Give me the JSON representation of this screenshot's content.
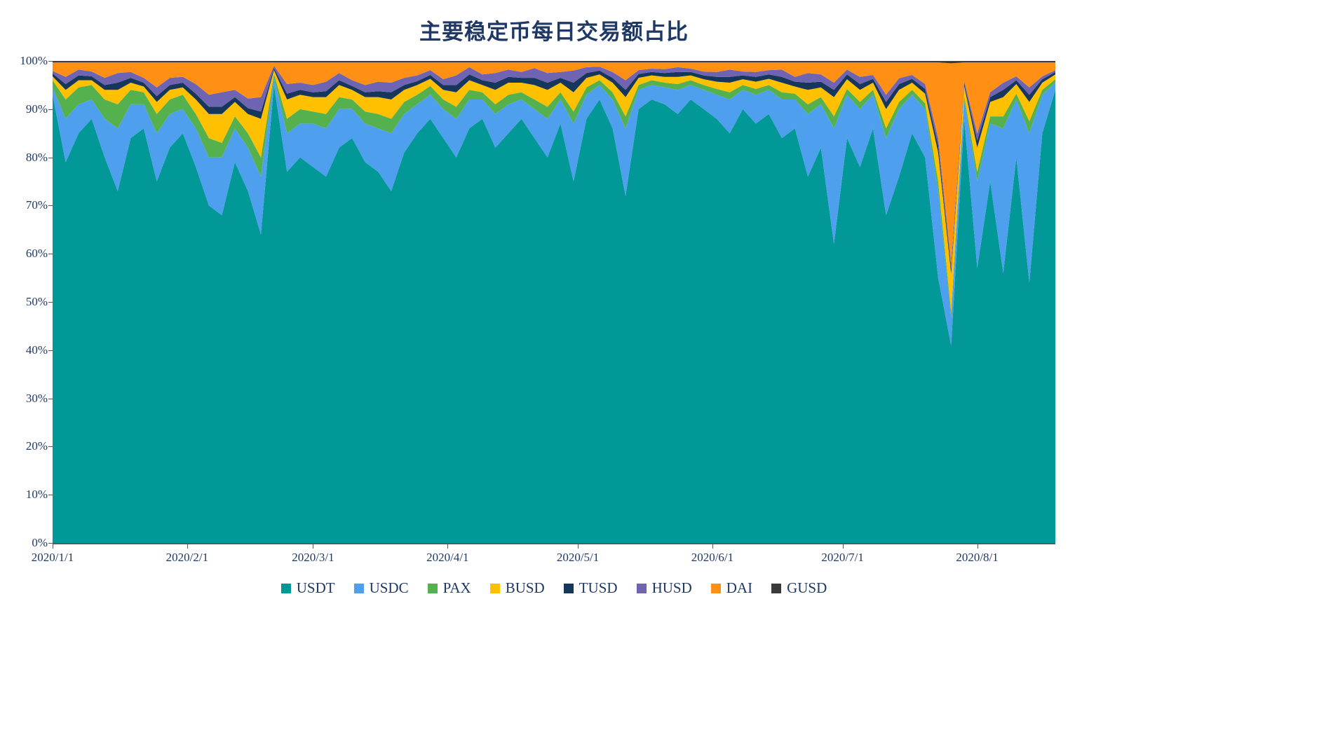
{
  "title": "主要稳定币每日交易额占比",
  "colors": {
    "title_text": "#1F3864",
    "axis_text": "#1F3864",
    "axis_line": "#595959",
    "gridline": "#D9D9D9",
    "background": "#FFFFFF"
  },
  "chart_data": {
    "type": "area",
    "stacking": "100%",
    "title": "主要稳定币每日交易额占比",
    "xlabel": "",
    "ylabel": "",
    "ylim": [
      0,
      100
    ],
    "grid": false,
    "legend_position": "bottom",
    "y_tick_labels": [
      "0%",
      "10%",
      "20%",
      "30%",
      "40%",
      "50%",
      "60%",
      "70%",
      "80%",
      "90%",
      "100%"
    ],
    "x_tick_labels": [
      "2020/1/1",
      "2020/2/1",
      "2020/3/1",
      "2020/4/1",
      "2020/5/1",
      "2020/6/1",
      "2020/7/1",
      "2020/8/1"
    ],
    "x": [
      "2020/1/1",
      "2020/1/4",
      "2020/1/7",
      "2020/1/10",
      "2020/1/13",
      "2020/1/16",
      "2020/1/19",
      "2020/1/22",
      "2020/1/25",
      "2020/1/28",
      "2020/1/31",
      "2020/2/3",
      "2020/2/6",
      "2020/2/9",
      "2020/2/12",
      "2020/2/15",
      "2020/2/18",
      "2020/2/21",
      "2020/2/24",
      "2020/2/27",
      "2020/3/1",
      "2020/3/4",
      "2020/3/7",
      "2020/3/10",
      "2020/3/13",
      "2020/3/16",
      "2020/3/19",
      "2020/3/22",
      "2020/3/25",
      "2020/3/28",
      "2020/3/31",
      "2020/4/3",
      "2020/4/6",
      "2020/4/9",
      "2020/4/12",
      "2020/4/15",
      "2020/4/18",
      "2020/4/21",
      "2020/4/24",
      "2020/4/27",
      "2020/4/30",
      "2020/5/3",
      "2020/5/6",
      "2020/5/9",
      "2020/5/12",
      "2020/5/15",
      "2020/5/18",
      "2020/5/21",
      "2020/5/24",
      "2020/5/27",
      "2020/5/30",
      "2020/6/2",
      "2020/6/5",
      "2020/6/8",
      "2020/6/11",
      "2020/6/14",
      "2020/6/17",
      "2020/6/20",
      "2020/6/23",
      "2020/6/26",
      "2020/6/29",
      "2020/7/2",
      "2020/7/5",
      "2020/7/8",
      "2020/7/11",
      "2020/7/14",
      "2020/7/17",
      "2020/7/20",
      "2020/7/23",
      "2020/7/26",
      "2020/7/29",
      "2020/8/1",
      "2020/8/4",
      "2020/8/7",
      "2020/8/10",
      "2020/8/13",
      "2020/8/16",
      "2020/8/19"
    ],
    "series": [
      {
        "name": "USDT",
        "color": "#029898",
        "values": [
          93,
          79,
          85,
          88,
          80,
          73,
          84,
          86,
          75,
          82,
          85,
          78,
          70,
          68,
          79,
          73,
          64,
          95,
          77,
          80,
          78,
          76,
          82,
          84,
          79,
          77,
          73,
          81,
          85,
          88,
          84,
          80,
          86,
          88,
          82,
          85,
          88,
          84,
          80,
          87,
          75,
          88,
          92,
          86,
          72,
          90,
          92,
          91,
          89,
          92,
          90,
          88,
          85,
          90,
          87,
          89,
          84,
          86,
          76,
          82,
          62,
          84,
          78,
          86,
          68,
          76,
          85,
          80,
          55,
          41,
          88,
          57,
          75,
          56,
          80,
          54,
          85,
          94
        ]
      },
      {
        "name": "USDC",
        "color": "#4E9FED",
        "values": [
          1.5,
          9,
          6,
          4,
          8,
          13,
          7,
          5,
          10,
          7,
          5,
          8,
          10,
          12,
          7,
          9,
          12,
          1.5,
          8,
          7,
          9,
          10,
          8,
          6,
          8,
          9,
          12,
          8,
          6,
          5,
          6,
          8,
          6,
          4,
          7,
          6,
          4,
          6,
          8,
          5,
          12,
          5,
          3,
          6,
          14,
          4,
          3,
          3.5,
          5,
          3,
          4,
          5,
          7,
          4,
          6,
          5,
          8,
          6,
          13,
          9,
          24,
          9,
          12,
          7,
          16,
          14,
          8,
          10,
          18,
          6,
          4,
          18,
          12,
          30,
          12,
          31,
          8,
          1.5
        ]
      },
      {
        "name": "PAX",
        "color": "#55B14E",
        "values": [
          1.5,
          4,
          3.5,
          3,
          4,
          5,
          3,
          2.5,
          4,
          3,
          3,
          3,
          4,
          3,
          2.5,
          3,
          4,
          0.8,
          3,
          3,
          2.5,
          3,
          2.5,
          2,
          2.5,
          3,
          3,
          2.5,
          2,
          1.8,
          2,
          2.5,
          2,
          1.5,
          2,
          2,
          1.5,
          2,
          2.5,
          1.5,
          2.5,
          1.5,
          1,
          1.5,
          2.5,
          1,
          1,
          1,
          1.2,
          1,
          1,
          1.2,
          1.5,
          1,
          1.2,
          1,
          1.5,
          1.2,
          2,
          1.5,
          2.5,
          1.2,
          1.5,
          1,
          2,
          1.5,
          1,
          1.2,
          2,
          1,
          0.8,
          2,
          1.5,
          2.5,
          1.2,
          2.5,
          1,
          0.7
        ]
      },
      {
        "name": "BUSD",
        "color": "#FFC000",
        "values": [
          0.8,
          2,
          1.5,
          1,
          2,
          3,
          1.5,
          1.2,
          2.5,
          2,
          1.5,
          3,
          5,
          6,
          3,
          4,
          8,
          0.8,
          4,
          3,
          3,
          3.5,
          2.5,
          2,
          3,
          3.5,
          4,
          2.5,
          2,
          1.5,
          2,
          3,
          2,
          1.5,
          3,
          2.5,
          2,
          3,
          3.5,
          2,
          4,
          2,
          1.2,
          2,
          4,
          1.5,
          1,
          1.2,
          1.5,
          1,
          1.2,
          1.5,
          2,
          1.2,
          1.5,
          1.3,
          2,
          1.5,
          3,
          2,
          4,
          2,
          2.5,
          1.5,
          4,
          2.5,
          1.5,
          2,
          6,
          8,
          2,
          5,
          3,
          4,
          2,
          4,
          1.5,
          1
        ]
      },
      {
        "name": "TUSD",
        "color": "#16365C",
        "values": [
          0.6,
          1.2,
          1,
          0.8,
          1,
          1.5,
          1,
          0.8,
          1.2,
          1,
          1,
          1.2,
          1.5,
          1.5,
          1,
          1.2,
          1.5,
          0.4,
          1.2,
          1,
          1,
          1.2,
          1,
          0.8,
          1,
          1.2,
          1.5,
          1,
          0.8,
          0.8,
          1,
          1.5,
          1.2,
          1,
          1.5,
          1.2,
          1,
          1.5,
          1.5,
          1,
          2,
          1,
          0.8,
          1,
          1.5,
          0.8,
          0.7,
          0.8,
          1,
          0.7,
          0.8,
          1,
          1.2,
          0.8,
          1,
          0.9,
          1.2,
          1,
          1.5,
          1.2,
          1.5,
          1,
          1.2,
          0.8,
          1.5,
          1.2,
          0.8,
          1,
          1.5,
          1,
          0.6,
          1.5,
          1,
          1.5,
          0.8,
          1.5,
          0.7,
          0.5
        ]
      },
      {
        "name": "HUSD",
        "color": "#6F64B2",
        "values": [
          0.5,
          1.5,
          1.2,
          1,
          1.5,
          2,
          1.2,
          1,
          1.8,
          1.5,
          1.2,
          2,
          2.5,
          3,
          1.5,
          2,
          3,
          0.5,
          2,
          1.5,
          1.5,
          2,
          1.5,
          1.2,
          1.5,
          2,
          2,
          1.5,
          1.2,
          1,
          1.2,
          2,
          1.5,
          1.2,
          2,
          1.5,
          1.2,
          2,
          2,
          1.2,
          2.5,
          1.2,
          0.8,
          1.2,
          2,
          0.8,
          0.7,
          0.8,
          1,
          0.7,
          0.8,
          1,
          1.5,
          0.8,
          1,
          0.9,
          1.5,
          1,
          2,
          1.5,
          1.5,
          1,
          1.5,
          0.8,
          1.5,
          1.2,
          0.8,
          1,
          1.5,
          1,
          0.5,
          1.5,
          1,
          1.5,
          0.8,
          1.5,
          0.6,
          0.4
        ]
      },
      {
        "name": "DAI",
        "color": "#FF9015",
        "values": [
          1.8,
          3,
          1.5,
          1.9,
          3.2,
          2.2,
          2,
          3.2,
          5.2,
          3.2,
          3,
          4.5,
          6.7,
          6.2,
          5.7,
          7.5,
          7.2,
          0.7,
          4.5,
          4.2,
          4.7,
          4,
          2.2,
          3.7,
          4.7,
          4,
          4.2,
          3.2,
          2.7,
          1.6,
          3.5,
          2.7,
          1,
          2.5,
          2.2,
          1.5,
          2,
          1.2,
          2.2,
          2,
          1.7,
          1,
          0.9,
          2,
          3.7,
          1.6,
          1.3,
          1.4,
          1,
          1.3,
          1.9,
          2,
          1.5,
          1.9,
          2,
          1.6,
          1.5,
          3,
          2.2,
          2.5,
          4.2,
          1.5,
          3,
          2.6,
          6.7,
          3.3,
          2.6,
          4.5,
          15.7,
          41.7,
          3.8,
          14.7,
          6.2,
          4.2,
          2.9,
          5.2,
          2.9,
          1.6
        ]
      },
      {
        "name": "GUSD",
        "color": "#3A3A3A",
        "values": [
          0.3,
          0.3,
          0.3,
          0.3,
          0.3,
          0.3,
          0.3,
          0.3,
          0.3,
          0.3,
          0.3,
          0.3,
          0.3,
          0.3,
          0.3,
          0.3,
          0.3,
          0.3,
          0.3,
          0.3,
          0.3,
          0.3,
          0.3,
          0.3,
          0.3,
          0.3,
          0.3,
          0.3,
          0.3,
          0.3,
          0.3,
          0.3,
          0.3,
          0.3,
          0.3,
          0.3,
          0.3,
          0.3,
          0.3,
          0.3,
          0.3,
          0.3,
          0.3,
          0.3,
          0.3,
          0.3,
          0.3,
          0.3,
          0.3,
          0.3,
          0.3,
          0.3,
          0.3,
          0.3,
          0.3,
          0.3,
          0.3,
          0.3,
          0.3,
          0.3,
          0.3,
          0.3,
          0.3,
          0.3,
          0.3,
          0.3,
          0.3,
          0.3,
          0.3,
          0.5,
          0.3,
          0.3,
          0.3,
          0.3,
          0.3,
          0.3,
          0.3,
          0.3
        ]
      }
    ]
  }
}
